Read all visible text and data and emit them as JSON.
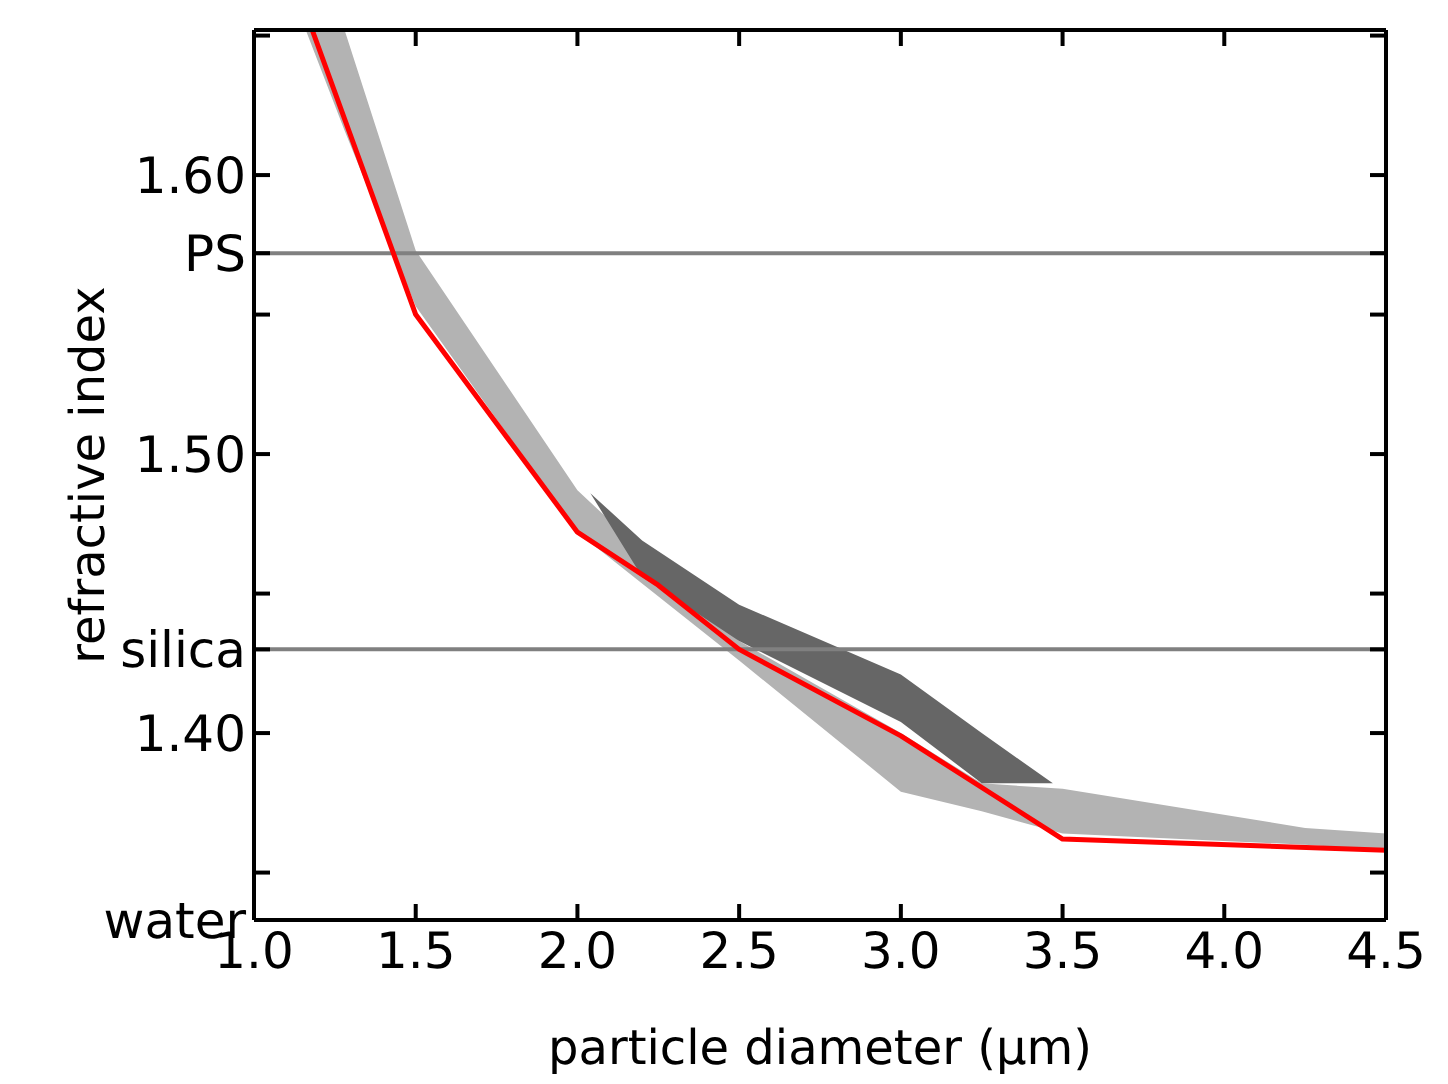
{
  "chart_data": {
    "type": "line",
    "xlabel": "particle diameter (µm)",
    "ylabel": "refractive index",
    "xlim": [
      1.0,
      4.5
    ],
    "xticks": [
      {
        "value": 1.0,
        "label": "1.0"
      },
      {
        "value": 1.5,
        "label": "1.5"
      },
      {
        "value": 2.0,
        "label": "2.0"
      },
      {
        "value": 2.5,
        "label": "2.5"
      },
      {
        "value": 3.0,
        "label": "3.0"
      },
      {
        "value": 3.5,
        "label": "3.5"
      },
      {
        "value": 4.0,
        "label": "4.0"
      },
      {
        "value": 4.5,
        "label": "4.5"
      }
    ],
    "ylim": [
      1.333,
      1.652
    ],
    "yticks": [
      {
        "value": 1.333,
        "label": "water"
      },
      {
        "value": 1.35,
        "label": null
      },
      {
        "value": 1.4,
        "label": "1.40"
      },
      {
        "value": 1.43,
        "label": "silica"
      },
      {
        "value": 1.45,
        "label": null
      },
      {
        "value": 1.5,
        "label": "1.50"
      },
      {
        "value": 1.55,
        "label": null
      },
      {
        "value": 1.572,
        "label": "PS"
      },
      {
        "value": 1.6,
        "label": "1.60"
      },
      {
        "value": 1.65,
        "label": null
      }
    ],
    "ref_lines": [
      {
        "axis": "y",
        "value": 1.572,
        "color": "#808080"
      },
      {
        "axis": "y",
        "value": 1.43,
        "color": "#808080"
      }
    ],
    "series": [
      {
        "color": "#b3b3b3",
        "x": [
          1.16,
          1.28,
          1.5,
          2.0,
          2.5,
          3.0,
          3.25,
          3.5,
          4.25,
          4.5
        ],
        "values": [
          null,
          null,
          null,
          null,
          null,
          null,
          null,
          null,
          null,
          null
        ],
        "lower": [
          1.652,
          1.616,
          1.553,
          1.472,
          1.426,
          1.379,
          1.372,
          1.364,
          1.36,
          1.358
        ],
        "upper": [
          1.652,
          1.652,
          1.573,
          1.487,
          1.433,
          1.4,
          1.382,
          1.38,
          1.366,
          1.364
        ]
      },
      {
        "color": "#666666",
        "x": [
          2.04,
          2.2,
          2.5,
          3.0,
          3.25,
          3.47
        ],
        "values": [
          null,
          null,
          null,
          null,
          null,
          null
        ],
        "lower": [
          1.486,
          1.456,
          1.433,
          1.404,
          1.382,
          1.382
        ],
        "upper": [
          1.486,
          1.469,
          1.446,
          1.421,
          1.4,
          1.382
        ]
      },
      {
        "color": "#ff0000",
        "x": [
          1.18,
          1.5,
          2.0,
          2.25,
          2.5,
          3.0,
          3.5,
          4.5
        ],
        "values": [
          1.652,
          1.55,
          1.472,
          1.453,
          1.43,
          1.399,
          1.362,
          1.358
        ]
      }
    ],
    "grid": false,
    "legend": false
  }
}
